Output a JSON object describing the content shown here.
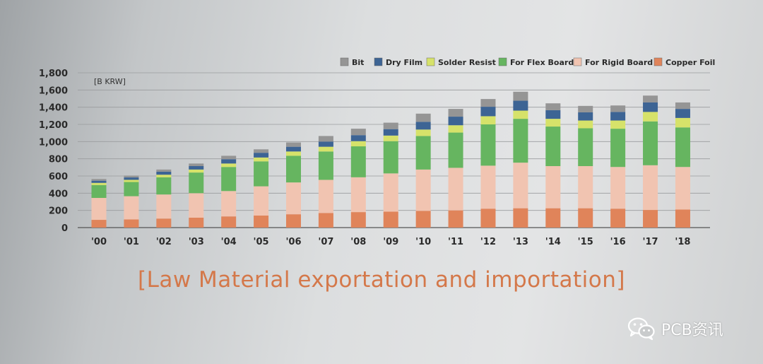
{
  "chart_data": {
    "type": "bar",
    "stacked": true,
    "unit_label": "[B KRW]",
    "categories": [
      "'00",
      "'01",
      "'02",
      "'03",
      "'04",
      "'05",
      "'06",
      "'07",
      "'08",
      "'09",
      "'10",
      "'11",
      "'12",
      "'13",
      "'14",
      "'15",
      "'16",
      "'17",
      "'18"
    ],
    "ylim": [
      0,
      1800
    ],
    "yticks": [
      "0",
      "200",
      "400",
      "600",
      "800",
      "1,000",
      "1,200",
      "1,400",
      "1,600",
      "1,800"
    ],
    "ytick_values": [
      0,
      200,
      400,
      600,
      800,
      1000,
      1200,
      1400,
      1600,
      1800
    ],
    "grid": true,
    "legend_position": "top-right",
    "series": [
      {
        "name": "Copper Foil",
        "color": "#e0845a",
        "values": [
          90,
          95,
          105,
          115,
          130,
          140,
          155,
          170,
          180,
          185,
          195,
          200,
          220,
          225,
          225,
          225,
          220,
          205,
          210
        ]
      },
      {
        "name": "For Rigid Board",
        "color": "#f1c4b1",
        "values": [
          255,
          270,
          280,
          285,
          295,
          340,
          370,
          385,
          405,
          445,
          480,
          495,
          500,
          530,
          490,
          490,
          485,
          520,
          495
        ]
      },
      {
        "name": "For Flex Board",
        "color": "#66b560",
        "values": [
          150,
          165,
          200,
          240,
          280,
          290,
          310,
          330,
          360,
          375,
          390,
          410,
          480,
          510,
          460,
          440,
          445,
          510,
          460
        ]
      },
      {
        "name": "Solder Resist",
        "color": "#d6e26a",
        "values": [
          25,
          25,
          30,
          35,
          40,
          45,
          50,
          55,
          60,
          65,
          75,
          85,
          95,
          95,
          90,
          90,
          95,
          110,
          110
        ]
      },
      {
        "name": "Dry Film",
        "color": "#3d6494",
        "values": [
          25,
          28,
          35,
          40,
          50,
          55,
          55,
          60,
          70,
          75,
          90,
          100,
          110,
          115,
          100,
          95,
          100,
          110,
          105
        ]
      },
      {
        "name": "Bit",
        "color": "#959595",
        "values": [
          20,
          22,
          25,
          30,
          40,
          40,
          50,
          65,
          75,
          75,
          95,
          90,
          90,
          105,
          80,
          75,
          75,
          80,
          75
        ]
      }
    ],
    "legend_order": [
      "Bit",
      "Dry Film",
      "Solder Resist",
      "For Flex Board",
      "For Rigid Board",
      "Copper Foil"
    ]
  },
  "caption": "[Law Material exportation and importation]",
  "watermark": {
    "text": "PCB资讯",
    "icon": "wechat-icon"
  }
}
